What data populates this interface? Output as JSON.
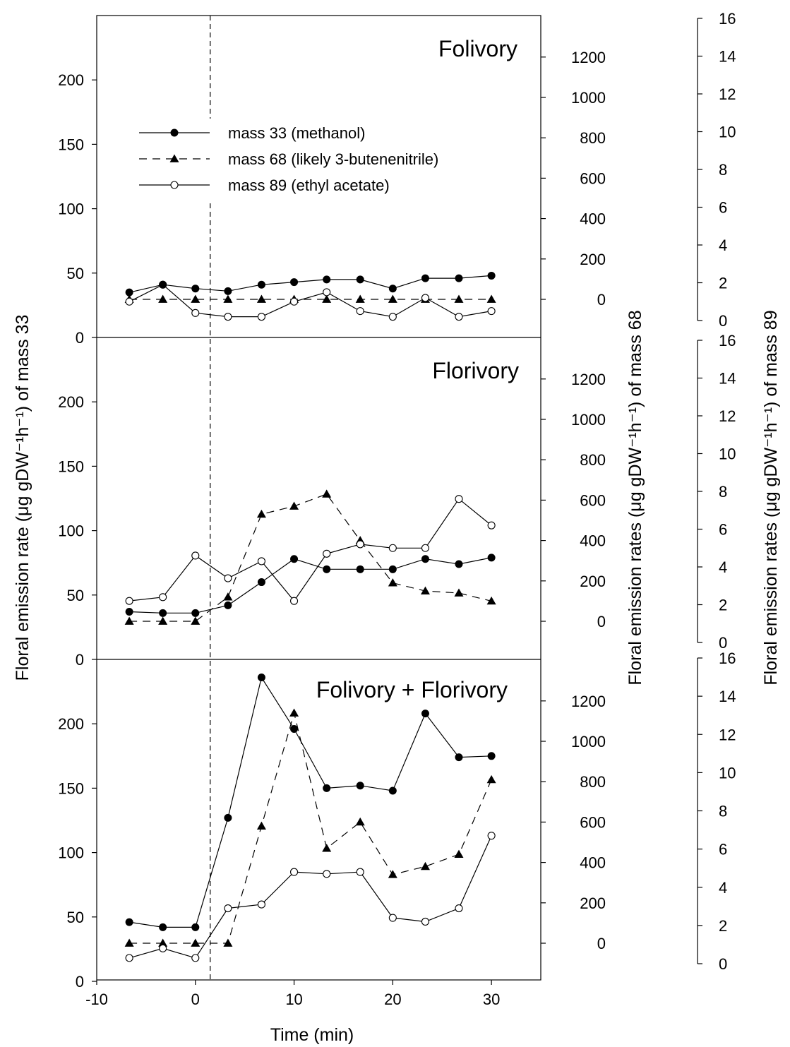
{
  "chart_data": {
    "type": "line",
    "x": [
      -6.7,
      -3.3,
      0,
      3.3,
      6.7,
      10,
      13.3,
      16.7,
      20,
      23.3,
      26.7,
      30
    ],
    "xlim": [
      -10,
      35
    ],
    "x_ticks": [
      "-10",
      "0",
      "10",
      "20",
      "30"
    ],
    "xlabel": "Time (min)",
    "ylabel_left": "Floral emission rate (μg gDW⁻¹h⁻¹) of mass 33",
    "ylabel_mid": "Floral emission rates (μg gDW⁻¹h⁻¹) of mass 68",
    "ylabel_right": "Floral emission rates (μg gDW⁻¹h⁻¹) of mass 89",
    "treatment_time": 1.5,
    "axes": {
      "mass33": {
        "range": [
          0,
          250
        ],
        "ticks": [
          "0",
          "50",
          "100",
          "150",
          "200"
        ]
      },
      "mass68": {
        "range": [
          -200,
          1400
        ],
        "ticks": [
          "0",
          "200",
          "400",
          "600",
          "800",
          "1000",
          "1200"
        ]
      },
      "mass89": {
        "range": [
          0,
          16
        ],
        "ticks": [
          "0",
          "2",
          "4",
          "6",
          "8",
          "10",
          "12",
          "14",
          "16"
        ]
      }
    },
    "legend": [
      {
        "series": "mass33",
        "label": "mass 33 (methanol)"
      },
      {
        "series": "mass68",
        "label": "mass 68 (likely 3-butenenitrile)"
      },
      {
        "series": "mass89",
        "label": "mass 89 (ethyl acetate)"
      }
    ],
    "panels": [
      {
        "title": "Folivory",
        "series": {
          "mass33": [
            35,
            41,
            38,
            36,
            41,
            43,
            45,
            45,
            38,
            46,
            46,
            48
          ],
          "mass68": [
            0,
            0,
            0,
            0,
            0,
            0,
            0,
            0,
            0,
            0,
            0,
            0
          ],
          "mass89": [
            1.0,
            1.9,
            0.4,
            0.2,
            0.2,
            1.0,
            1.5,
            0.5,
            0.2,
            1.2,
            0.2,
            0.5
          ]
        }
      },
      {
        "title": "Florivory",
        "series": {
          "mass33": [
            37,
            36,
            36,
            42,
            60,
            78,
            70,
            70,
            70,
            78,
            74,
            79
          ],
          "mass68": [
            0,
            0,
            0,
            120,
            530,
            570,
            630,
            400,
            190,
            150,
            140,
            100
          ],
          "mass89": [
            2.2,
            2.4,
            4.6,
            3.4,
            4.3,
            2.2,
            4.7,
            5.2,
            5.0,
            5.0,
            7.6,
            6.2
          ]
        }
      },
      {
        "title": "Folivory + Florivory",
        "series": {
          "mass33": [
            46,
            42,
            42,
            127,
            236,
            196,
            150,
            152,
            148,
            208,
            174,
            175
          ],
          "mass68": [
            0,
            0,
            0,
            0,
            580,
            1140,
            470,
            600,
            340,
            380,
            440,
            810
          ],
          "mass89": [
            0.3,
            0.8,
            0.3,
            2.9,
            3.1,
            4.8,
            4.7,
            4.8,
            2.4,
            2.2,
            2.9,
            6.7
          ]
        }
      }
    ]
  }
}
